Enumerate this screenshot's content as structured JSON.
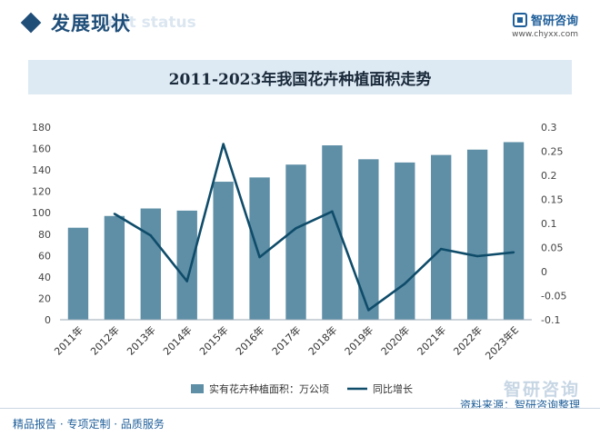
{
  "header": {
    "section_title": "发展现状",
    "section_ghost": "ent status",
    "brand_name": "智研咨询",
    "brand_url": "www.chyxx.com"
  },
  "chart_data": {
    "type": "bar",
    "title": "2011-2023年我国花卉种植面积走势",
    "categories": [
      "2011年",
      "2012年",
      "2013年",
      "2014年",
      "2015年",
      "2016年",
      "2017年",
      "2018年",
      "2019年",
      "2020年",
      "2021年",
      "2022年",
      "2023年E"
    ],
    "series": [
      {
        "name": "实有花卉种植面积：万公顷",
        "type": "bar",
        "axis": "left",
        "color": "#5e8fa6",
        "values": [
          86,
          97,
          104,
          102,
          129,
          133,
          145,
          163,
          150,
          147,
          154,
          159,
          166
        ]
      },
      {
        "name": "同比增长",
        "type": "line",
        "axis": "right",
        "color": "#0f4c6a",
        "values": [
          null,
          0.12,
          0.075,
          -0.02,
          0.265,
          0.03,
          0.09,
          0.125,
          -0.08,
          -0.025,
          0.047,
          0.032,
          0.04
        ]
      }
    ],
    "y_left": {
      "min": 0,
      "max": 180,
      "ticks": [
        0,
        20,
        40,
        60,
        80,
        100,
        120,
        140,
        160,
        180
      ]
    },
    "y_right": {
      "min": -0.1,
      "max": 0.3,
      "ticks": [
        "-0.1",
        "-0.05",
        "0",
        "0.05",
        "0.1",
        "0.15",
        "0.2",
        "0.25",
        "0.3"
      ]
    },
    "grid": false,
    "legend_position": "bottom"
  },
  "footer": {
    "left": "精品报告 · 专项定制 · 品质服务",
    "source": "资料来源：智研咨询整理",
    "watermark": "智研咨询"
  }
}
